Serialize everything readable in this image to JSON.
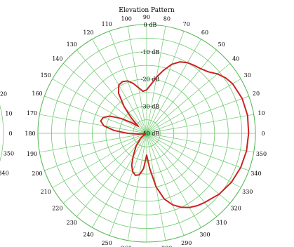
{
  "chart_data": {
    "type": "polar-line",
    "title": "Elevation Pattern",
    "angle_unit": "deg",
    "angle_ticks": [
      0,
      10,
      20,
      30,
      40,
      50,
      60,
      70,
      80,
      90,
      100,
      110,
      120,
      130,
      140,
      150,
      160,
      170,
      180,
      190,
      200,
      210,
      220,
      230,
      240,
      250,
      260,
      270,
      280,
      290,
      300,
      310,
      320,
      330,
      340,
      350
    ],
    "radial_rings_db": [
      0,
      -10,
      -20,
      -30,
      -40
    ],
    "ring_labels": [
      "0 dB",
      "-10 dB",
      "-20 dB",
      "-30 dB",
      "-40 dB"
    ],
    "radial_range_db": [
      -40,
      0
    ],
    "grid": true,
    "series": [
      {
        "color": "#cc2222",
        "points": [
          [
            0,
            -2.5
          ],
          [
            10,
            -2.3
          ],
          [
            20,
            -2.6
          ],
          [
            30,
            -3.5
          ],
          [
            35,
            -4.5
          ],
          [
            40,
            -6
          ],
          [
            45,
            -8
          ],
          [
            50,
            -9
          ],
          [
            55,
            -9.5
          ],
          [
            60,
            -10
          ],
          [
            65,
            -11
          ],
          [
            70,
            -13
          ],
          [
            75,
            -16
          ],
          [
            80,
            -19
          ],
          [
            85,
            -22
          ],
          [
            90,
            -24
          ],
          [
            95,
            -24.5
          ],
          [
            100,
            -23
          ],
          [
            105,
            -21
          ],
          [
            110,
            -19.5
          ],
          [
            115,
            -19
          ],
          [
            120,
            -19.5
          ],
          [
            125,
            -22
          ],
          [
            130,
            -27
          ],
          [
            135,
            -32
          ],
          [
            140,
            -36
          ],
          [
            145,
            -33
          ],
          [
            150,
            -29
          ],
          [
            155,
            -25
          ],
          [
            160,
            -23
          ],
          [
            165,
            -22.5
          ],
          [
            170,
            -24
          ],
          [
            175,
            -28
          ],
          [
            180,
            -33
          ],
          [
            185,
            -37
          ],
          [
            190,
            -39
          ],
          [
            200,
            -39.5
          ],
          [
            210,
            -39
          ],
          [
            220,
            -37
          ],
          [
            230,
            -34
          ],
          [
            240,
            -30
          ],
          [
            245,
            -27
          ],
          [
            250,
            -25
          ],
          [
            255,
            -24
          ],
          [
            260,
            -24.5
          ],
          [
            265,
            -27
          ],
          [
            270,
            -32
          ],
          [
            275,
            -27
          ],
          [
            280,
            -20
          ],
          [
            285,
            -15
          ],
          [
            290,
            -12
          ],
          [
            295,
            -10
          ],
          [
            300,
            -8.5
          ],
          [
            305,
            -7.5
          ],
          [
            310,
            -6.8
          ],
          [
            320,
            -5.2
          ],
          [
            330,
            -4
          ],
          [
            340,
            -3.2
          ],
          [
            350,
            -2.7
          ],
          [
            360,
            -2.5
          ]
        ]
      }
    ]
  },
  "left_partial_labels": [
    "20",
    "10",
    "0",
    "350",
    "340"
  ]
}
